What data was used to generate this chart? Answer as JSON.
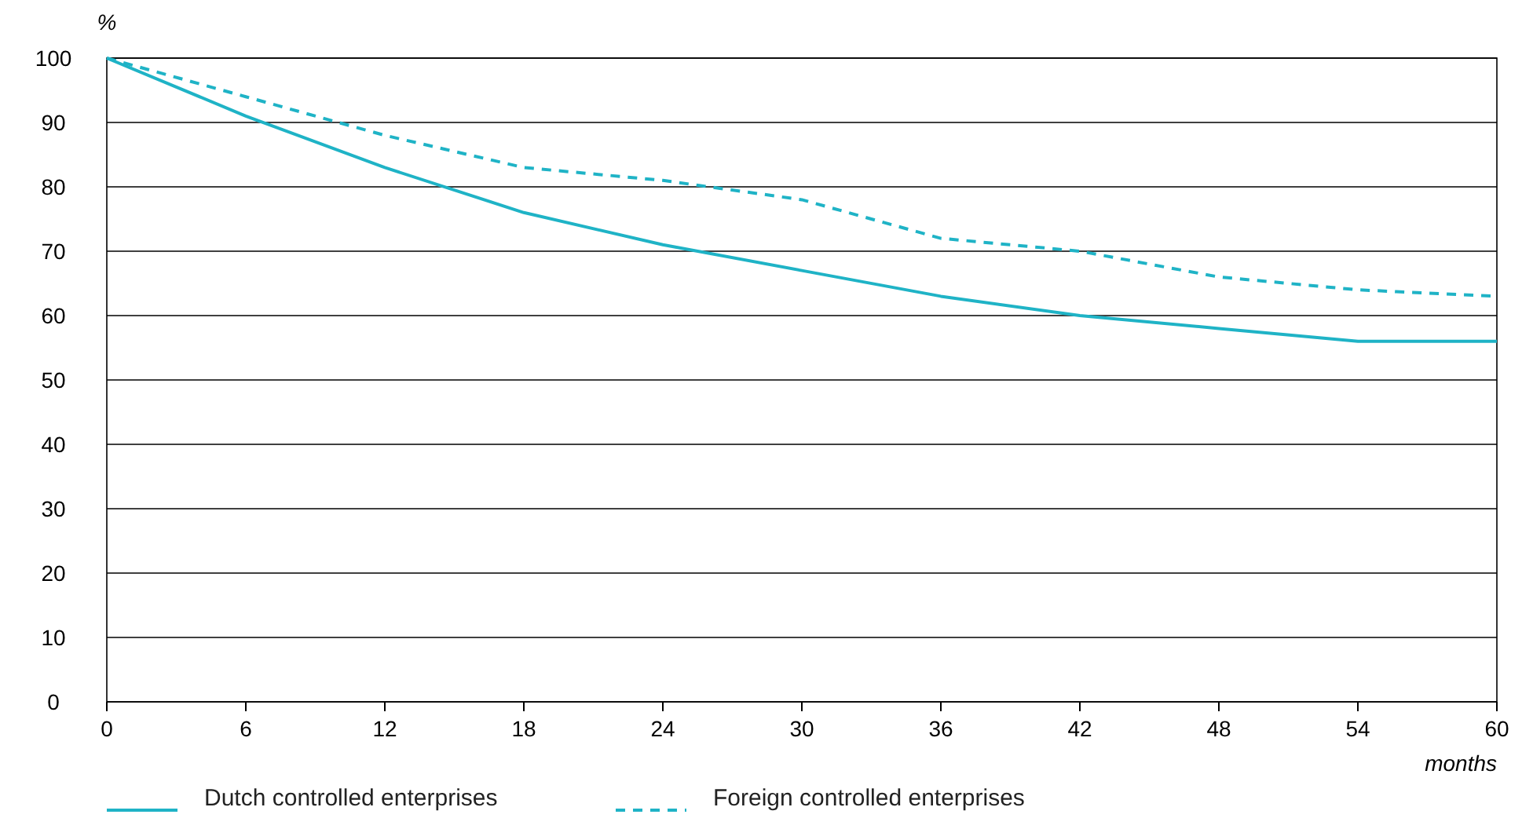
{
  "chart_data": {
    "type": "line",
    "xlabel": "months",
    "ylabel": "%",
    "x": [
      0,
      6,
      12,
      18,
      24,
      30,
      36,
      42,
      48,
      54,
      60
    ],
    "xlim": [
      0,
      60
    ],
    "xticks": [
      0,
      6,
      12,
      18,
      24,
      30,
      36,
      42,
      48,
      54,
      60
    ],
    "ylim": [
      0,
      100
    ],
    "yticks": [
      0,
      10,
      20,
      30,
      40,
      50,
      60,
      70,
      80,
      90,
      100
    ],
    "grid": "y",
    "legend": "bottom",
    "marker": "none",
    "series": [
      {
        "name": "Dutch controlled enterprises",
        "color": "#1fb3c6",
        "line_style": "solid",
        "values": [
          100,
          91,
          83,
          76,
          71,
          67,
          63,
          60,
          58,
          56,
          56
        ]
      },
      {
        "name": "Foreign controlled enterprises",
        "color": "#1fb3c6",
        "line_style": "dashed",
        "values": [
          100,
          94,
          88,
          83,
          81,
          78,
          72,
          70,
          66,
          64,
          63
        ]
      }
    ]
  }
}
